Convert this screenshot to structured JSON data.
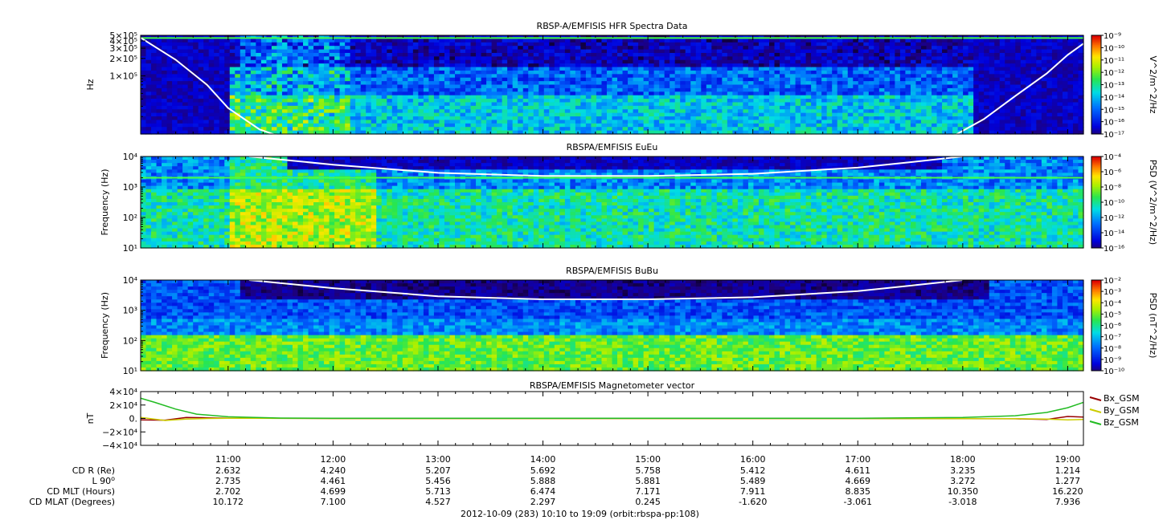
{
  "chart_data": [
    {
      "type": "heatmap",
      "title": "RBSP-A/EMFISIS  HFR Spectra Data",
      "ylabel": "Hz",
      "yscale": "log",
      "ylim": [
        10000,
        500000
      ],
      "yticks": [
        {
          "value": 500000,
          "label": "5×10⁵"
        },
        {
          "value": 400000,
          "label": "4×10⁵"
        },
        {
          "value": 300000,
          "label": "3×10⁵"
        },
        {
          "value": 200000,
          "label": "2×10⁵"
        },
        {
          "value": 100000,
          "label": "1×10⁵"
        }
      ],
      "colorbar": {
        "label": "V^2/m^2/Hz",
        "ticks": [
          "10⁻⁹",
          "10⁻¹⁰",
          "10⁻¹¹",
          "10⁻¹²",
          "10⁻¹³",
          "10⁻¹⁴",
          "10⁻¹⁵",
          "10⁻¹⁶",
          "10⁻¹⁷"
        ],
        "range_exp": [
          -17,
          -9
        ]
      },
      "overlay": {
        "name": "white line",
        "color": "#ffffff",
        "x_hours": [
          10.17,
          10.5,
          10.8,
          11.0,
          11.3,
          11.5
        ],
        "y": [
          450000,
          190000,
          70000,
          28000,
          12000,
          9000
        ]
      },
      "overlay2": {
        "color": "#ffffff",
        "x_hours": [
          17.9,
          18.2,
          18.5,
          18.8,
          19.0,
          19.15
        ],
        "y": [
          9000,
          18000,
          45000,
          110000,
          230000,
          360000
        ]
      },
      "hline": {
        "value": 450000,
        "color": "#44ff44"
      }
    },
    {
      "type": "heatmap",
      "title": "RBSPA/EMFISIS  EuEu",
      "ylabel": "Frequency (Hz)",
      "yscale": "log",
      "ylim": [
        10,
        10000
      ],
      "yticks": [
        {
          "value": 10000,
          "label": "10⁴"
        },
        {
          "value": 1000,
          "label": "10³"
        },
        {
          "value": 100,
          "label": "10²"
        },
        {
          "value": 10,
          "label": "10¹"
        }
      ],
      "colorbar": {
        "label": "PSD (V^2/m^2/Hz)",
        "ticks": [
          "10⁻⁴",
          "10⁻⁶",
          "10⁻⁸",
          "10⁻¹⁰",
          "10⁻¹²",
          "10⁻¹⁴",
          "10⁻¹⁶"
        ],
        "range_exp": [
          -16,
          -4
        ]
      },
      "overlay": {
        "color": "#ffffff",
        "x_hours": [
          11.2,
          12.0,
          13.0,
          14.0,
          15.0,
          16.0,
          17.0,
          17.5,
          18.0
        ],
        "y": [
          10000,
          5400,
          2900,
          2300,
          2300,
          2700,
          4300,
          6500,
          10000
        ]
      },
      "hline": {
        "value": 2000,
        "color": "#44ff44"
      }
    },
    {
      "type": "heatmap",
      "title": "RBSPA/EMFISIS  BuBu",
      "ylabel": "Frequency (Hz)",
      "yscale": "log",
      "ylim": [
        10,
        10000
      ],
      "yticks": [
        {
          "value": 10000,
          "label": "10⁴"
        },
        {
          "value": 1000,
          "label": "10³"
        },
        {
          "value": 100,
          "label": "10²"
        },
        {
          "value": 10,
          "label": "10¹"
        }
      ],
      "colorbar": {
        "label": "PSD (nT^2/Hz)",
        "ticks": [
          "10⁻²",
          "10⁻³",
          "10⁻⁴",
          "10⁻⁵",
          "10⁻⁶",
          "10⁻⁷",
          "10⁻⁸",
          "10⁻⁹",
          "10⁻¹⁰"
        ],
        "range_exp": [
          -10,
          -2
        ]
      },
      "overlay": {
        "color": "#ffffff",
        "x_hours": [
          11.2,
          12.0,
          13.0,
          14.0,
          15.0,
          16.0,
          17.0,
          17.5,
          18.0
        ],
        "y": [
          10000,
          5400,
          2900,
          2300,
          2300,
          2700,
          4300,
          6500,
          10000
        ]
      }
    },
    {
      "type": "line",
      "title": "RBSPA/EMFISIS  Magnetometer vector",
      "ylabel": "nT",
      "ylim": [
        -40000,
        40000
      ],
      "yticks": [
        {
          "value": 40000,
          "label": "4×10⁴"
        },
        {
          "value": 20000,
          "label": "2×10⁴"
        },
        {
          "value": 0,
          "label": "0."
        },
        {
          "value": -20000,
          "label": "−2×10⁴"
        },
        {
          "value": -40000,
          "label": "−4×10⁴"
        }
      ],
      "legend_placement": "right",
      "series": [
        {
          "name": "Bx_GSM",
          "color": "#990000",
          "x": [
            10.17,
            10.4,
            10.6,
            10.8,
            11.0,
            12.0,
            17.0,
            18.5,
            18.8,
            19.0,
            19.15
          ],
          "y": [
            -2000,
            -2500,
            1500,
            1000,
            500,
            0,
            0,
            -500,
            -1500,
            3000,
            2000
          ]
        },
        {
          "name": "By_GSM",
          "color": "#cccc00",
          "x": [
            10.17,
            10.4,
            10.6,
            10.8,
            11.0,
            12.0,
            17.0,
            18.5,
            18.8,
            19.0,
            19.15
          ],
          "y": [
            1500,
            -3000,
            -1000,
            0,
            300,
            0,
            0,
            -300,
            -1000,
            -2000,
            -1500
          ]
        },
        {
          "name": "Bz_GSM",
          "color": "#22bb22",
          "x": [
            10.17,
            10.3,
            10.5,
            10.7,
            11.0,
            11.5,
            12.0,
            17.0,
            18.0,
            18.5,
            18.8,
            19.0,
            19.15
          ],
          "y": [
            30000,
            24000,
            14000,
            6500,
            2500,
            600,
            200,
            200,
            1500,
            4000,
            9000,
            16000,
            24000
          ]
        }
      ]
    }
  ],
  "xaxis": {
    "xlim_hours": [
      10.1667,
      19.15
    ],
    "ticks": [
      "11:00",
      "12:00",
      "13:00",
      "14:00",
      "15:00",
      "16:00",
      "17:00",
      "18:00",
      "19:00"
    ],
    "tick_hours": [
      11,
      12,
      13,
      14,
      15,
      16,
      17,
      18,
      19
    ]
  },
  "ephemeris": {
    "labels": [
      "CD R (Re)",
      "L 90",
      "CD MLT (Hours)",
      "CD MLAT (Degrees)"
    ],
    "l_superscript": "o",
    "rows": [
      [
        "2.632",
        "4.240",
        "5.207",
        "5.692",
        "5.758",
        "5.412",
        "4.611",
        "3.235",
        "1.214"
      ],
      [
        "2.735",
        "4.461",
        "5.456",
        "5.888",
        "5.881",
        "5.489",
        "4.669",
        "3.272",
        "1.277"
      ],
      [
        "2.702",
        "4.699",
        "5.713",
        "6.474",
        "7.171",
        "7.911",
        "8.835",
        "10.350",
        "16.220"
      ],
      [
        "10.172",
        "7.100",
        "4.527",
        "2.297",
        "0.245",
        "-1.620",
        "-3.061",
        "-3.018",
        "7.936"
      ]
    ]
  },
  "footer": "2012-10-09 (283) 10:10 to 19:09 (orbit:rbspa-pp:108)"
}
